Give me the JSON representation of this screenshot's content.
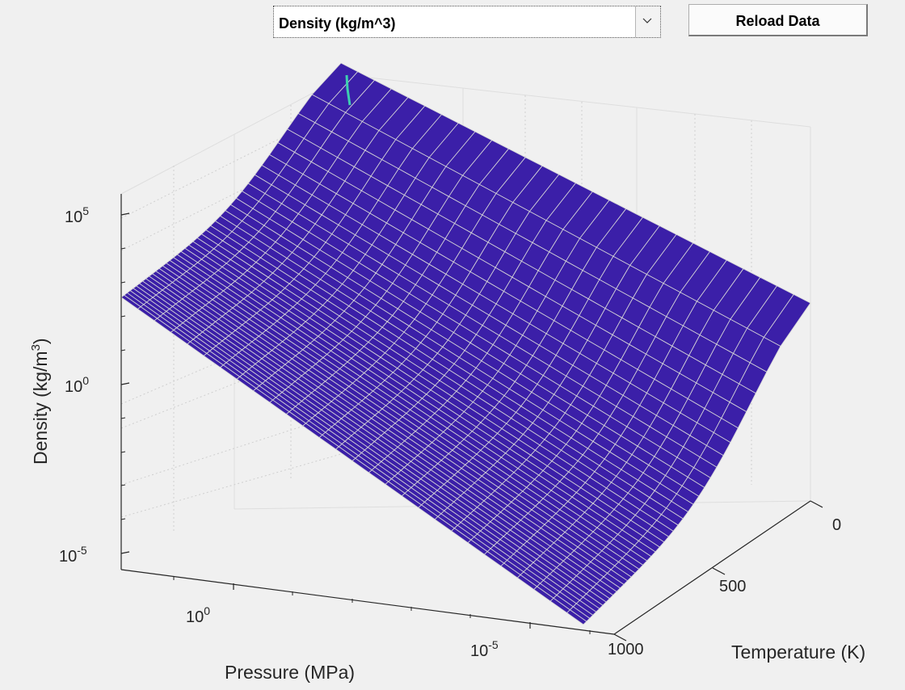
{
  "controls": {
    "quantity_select_value": "Density (kg/m^3)",
    "reload_label": "Reload Data"
  },
  "chart_data": {
    "type": "surface",
    "title": "",
    "xlabel": "Pressure (MPa)",
    "ylabel": "Temperature (K)",
    "zlabel_main": "Density (kg/m",
    "zlabel_sup": "3",
    "zlabel_tail": ")",
    "x_scale": "log",
    "z_scale": "log",
    "x_ticks": [
      {
        "base": "10",
        "exp": "0"
      },
      {
        "base": "10",
        "exp": "-5"
      }
    ],
    "y_ticks": [
      "0",
      "500",
      "1000"
    ],
    "z_ticks": [
      {
        "base": "10",
        "exp": "5"
      },
      {
        "base": "10",
        "exp": "0"
      },
      {
        "base": "10",
        "exp": "-5"
      }
    ],
    "grid": true,
    "colormap": "parula",
    "surface_color": "#3b1fa8",
    "mesh_color": "#d9d9d9"
  }
}
